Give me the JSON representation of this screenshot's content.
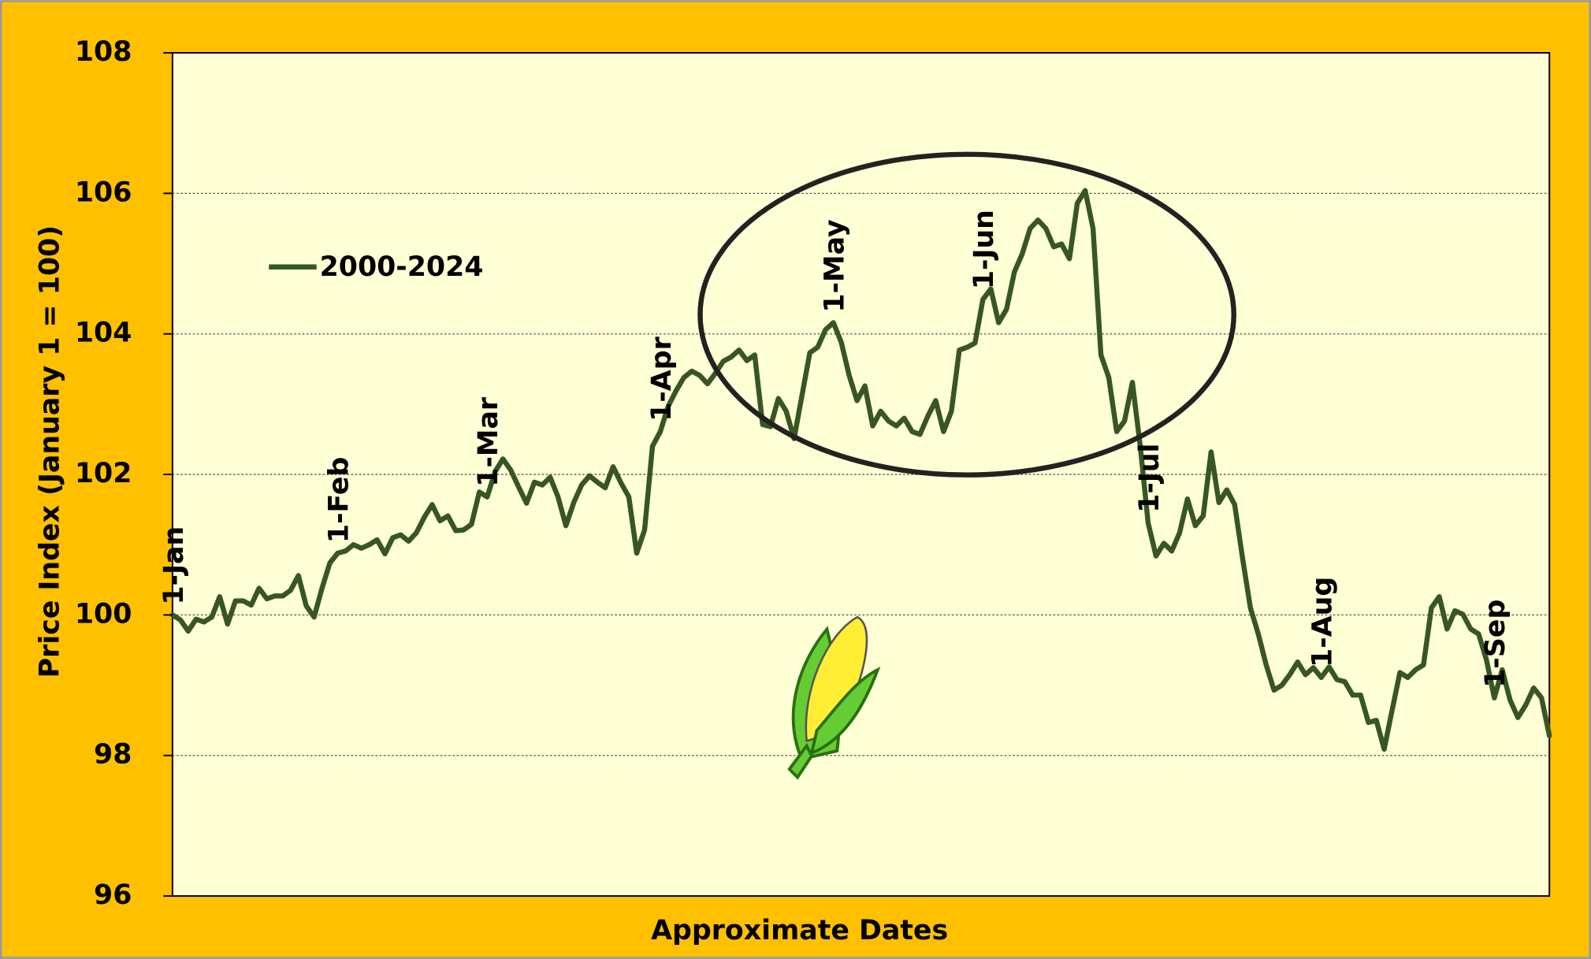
{
  "chart_data": {
    "type": "line",
    "y_label": "Price Index (January 1 = 100)",
    "x_label": "Approximate Dates",
    "ylim": [
      96,
      108
    ],
    "yticks": [
      96,
      98,
      100,
      102,
      104,
      106,
      108
    ],
    "grid": true,
    "categories": [
      "1-Jan",
      null,
      null,
      null,
      null,
      null,
      null,
      null,
      null,
      null,
      null,
      null,
      null,
      null,
      null,
      null,
      null,
      null,
      null,
      null,
      null,
      "1-Feb",
      null,
      null,
      null,
      null,
      null,
      null,
      null,
      null,
      null,
      null,
      null,
      null,
      null,
      null,
      null,
      null,
      null,
      null,
      "1-Mar",
      null,
      null,
      null,
      null,
      null,
      null,
      null,
      null,
      null,
      null,
      null,
      null,
      null,
      null,
      null,
      null,
      null,
      null,
      null,
      null,
      null,
      "1-Apr",
      null,
      null,
      null,
      null,
      null,
      null,
      null,
      null,
      null,
      null,
      null,
      null,
      null,
      null,
      null,
      null,
      null,
      null,
      null,
      null,
      null,
      "1-May",
      null,
      null,
      null,
      null,
      null,
      null,
      null,
      null,
      null,
      null,
      null,
      null,
      null,
      null,
      null,
      null,
      null,
      null,
      "1-Jun",
      null,
      null,
      null,
      null,
      null,
      null,
      null,
      null,
      null,
      null,
      null,
      null,
      null,
      null,
      null,
      null,
      null,
      null,
      null,
      null,
      "1-Jul",
      null,
      null,
      null,
      null,
      null,
      null,
      null,
      null,
      null,
      null,
      null,
      null,
      null,
      null,
      null,
      null,
      null,
      null,
      null,
      null,
      null,
      "1-Aug",
      null,
      null,
      null,
      null,
      null,
      null,
      null,
      null,
      null,
      null,
      null,
      null,
      null,
      null,
      null,
      null,
      null,
      null,
      null,
      null,
      null,
      "1-Sep",
      null,
      null,
      null,
      null,
      null,
      null,
      null
    ],
    "series": [
      {
        "name": "2000-2024",
        "color": "#375623",
        "values": [
          100.0,
          99.93,
          99.77,
          99.94,
          99.9,
          99.97,
          100.26,
          99.87,
          100.2,
          100.2,
          100.14,
          100.38,
          100.23,
          100.27,
          100.27,
          100.35,
          100.56,
          100.13,
          99.97,
          100.38,
          100.74,
          100.88,
          100.91,
          101.0,
          100.95,
          101.0,
          101.07,
          100.87,
          101.1,
          101.14,
          101.05,
          101.17,
          101.39,
          101.57,
          101.34,
          101.41,
          101.2,
          101.21,
          101.29,
          101.75,
          101.68,
          102.04,
          102.22,
          102.06,
          101.82,
          101.59,
          101.89,
          101.85,
          101.96,
          101.68,
          101.27,
          101.6,
          101.85,
          101.98,
          101.89,
          101.81,
          102.11,
          101.88,
          101.68,
          100.88,
          101.21,
          102.4,
          102.61,
          102.97,
          103.19,
          103.38,
          103.47,
          103.41,
          103.29,
          103.44,
          103.61,
          103.67,
          103.77,
          103.62,
          103.7,
          102.71,
          102.68,
          103.08,
          102.9,
          102.51,
          103.12,
          103.73,
          103.81,
          104.06,
          104.16,
          103.88,
          103.41,
          103.05,
          103.26,
          102.69,
          102.9,
          102.76,
          102.69,
          102.8,
          102.61,
          102.57,
          102.83,
          103.05,
          102.61,
          102.9,
          103.77,
          103.81,
          103.87,
          104.49,
          104.64,
          104.16,
          104.35,
          104.88,
          105.14,
          105.5,
          105.62,
          105.5,
          105.24,
          105.28,
          105.07,
          105.86,
          106.04,
          105.5,
          103.7,
          103.38,
          102.61,
          102.76,
          103.31,
          102.4,
          101.31,
          100.84,
          101.02,
          100.91,
          101.17,
          101.65,
          101.27,
          101.41,
          102.32,
          101.6,
          101.78,
          101.57,
          100.81,
          100.1,
          99.73,
          99.29,
          98.93,
          99.0,
          99.15,
          99.33,
          99.15,
          99.25,
          99.11,
          99.26,
          99.08,
          99.05,
          98.86,
          98.86,
          98.47,
          98.5,
          98.09,
          98.64,
          99.18,
          99.11,
          99.22,
          99.29,
          100.1,
          100.26,
          99.8,
          100.06,
          100.01,
          99.8,
          99.73,
          99.36,
          98.82,
          99.22,
          98.79,
          98.54,
          98.72,
          98.96,
          98.82,
          98.28
        ]
      }
    ]
  }
}
